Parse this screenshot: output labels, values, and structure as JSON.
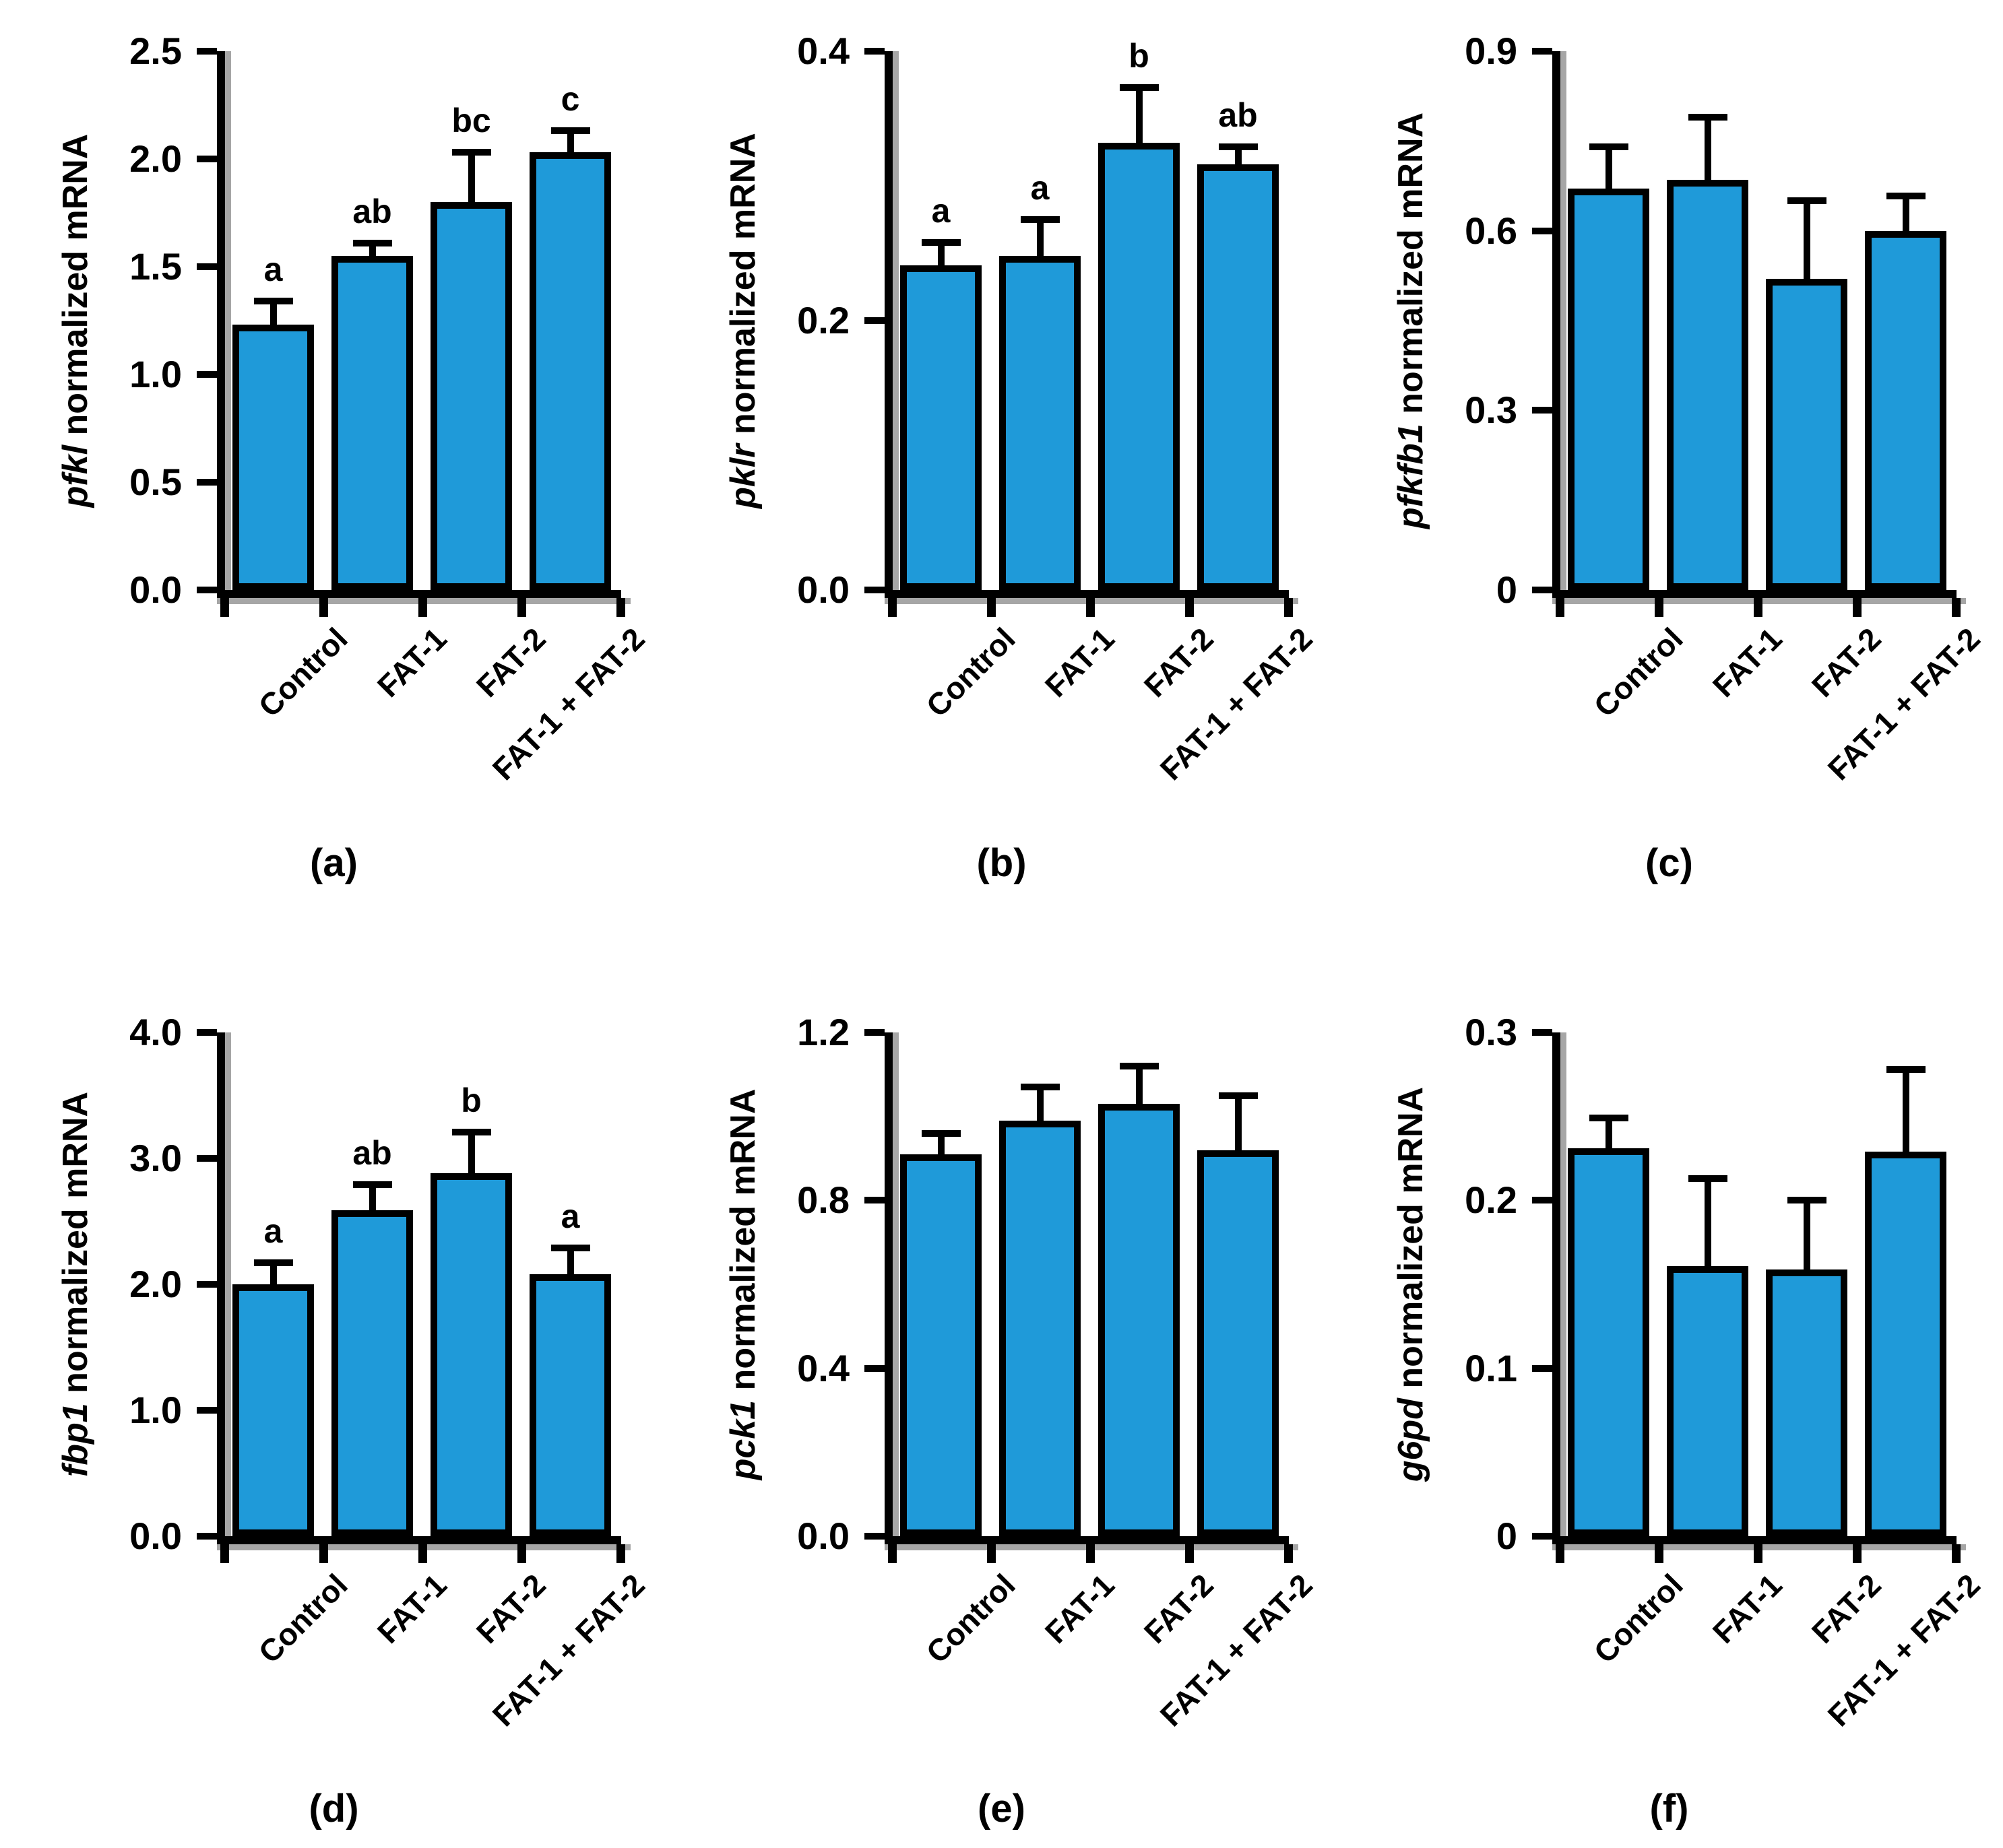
{
  "figure": {
    "background": "#ffffff",
    "panel_rows": 2,
    "panel_cols": 3
  },
  "colors": {
    "bar_fill": "#1f9ad9",
    "bar_border": "#000000",
    "axis": "#000000",
    "axis_shadow": "#a6a6a6",
    "text": "#000000"
  },
  "chart_data": [
    {
      "id": "a",
      "type": "bar",
      "panel_label": "(a)",
      "ylabel_gene": "pfkl",
      "ylabel_suffix": " normalized mRNA",
      "categories": [
        "Control",
        "FAT-1",
        "FAT-2",
        "FAT-1 + FAT-2"
      ],
      "values": [
        1.23,
        1.55,
        1.8,
        2.03
      ],
      "errors_plus": [
        0.11,
        0.06,
        0.23,
        0.1
      ],
      "sig_letters": [
        "a",
        "ab",
        "bc",
        "c"
      ],
      "ylim": [
        0,
        2.5
      ],
      "yticks": [
        "0.0",
        "0.5",
        "1.0",
        "1.5",
        "2.0",
        "2.5"
      ],
      "legend": "none",
      "grid": "off"
    },
    {
      "id": "b",
      "type": "bar",
      "panel_label": "(b)",
      "ylabel_gene": "pklr",
      "ylabel_suffix": " normalized mRNA",
      "categories": [
        "Control",
        "FAT-1",
        "FAT-2",
        "FAT-1 + FAT-2"
      ],
      "values": [
        0.241,
        0.248,
        0.332,
        0.316
      ],
      "errors_plus": [
        0.017,
        0.027,
        0.041,
        0.013
      ],
      "sig_letters": [
        "a",
        "a",
        "b",
        "ab"
      ],
      "ylim": [
        0,
        0.4
      ],
      "yticks": [
        "0.0",
        "0.2",
        "0.4"
      ],
      "legend": "none",
      "grid": "off"
    },
    {
      "id": "c",
      "type": "bar",
      "panel_label": "(c)",
      "ylabel_gene": "pfkfb1",
      "ylabel_suffix": " normalized mRNA",
      "categories": [
        "Control",
        "FAT-1",
        "FAT-2",
        "FAT-1 + FAT-2"
      ],
      "values": [
        0.67,
        0.685,
        0.52,
        0.6
      ],
      "errors_plus": [
        0.07,
        0.105,
        0.13,
        0.058
      ],
      "sig_letters": [
        "",
        "",
        "",
        ""
      ],
      "ylim": [
        0,
        0.9
      ],
      "yticks": [
        "0",
        "0.3",
        "0.6",
        "0.9"
      ],
      "legend": "none",
      "grid": "off"
    },
    {
      "id": "d",
      "type": "bar",
      "panel_label": "(d)",
      "ylabel_gene": "fbp1",
      "ylabel_suffix": " normalized mRNA",
      "categories": [
        "Control",
        "FAT-1",
        "FAT-2",
        "FAT-1 + FAT-2"
      ],
      "values": [
        2.0,
        2.59,
        2.88,
        2.08
      ],
      "errors_plus": [
        0.17,
        0.2,
        0.33,
        0.21
      ],
      "sig_letters": [
        "a",
        "ab",
        "b",
        "a"
      ],
      "ylim": [
        0,
        4.0
      ],
      "yticks": [
        "0.0",
        "1.0",
        "2.0",
        "3.0",
        "4.0"
      ],
      "legend": "none",
      "grid": "off"
    },
    {
      "id": "e",
      "type": "bar",
      "panel_label": "(e)",
      "ylabel_gene": "pck1",
      "ylabel_suffix": " normalized mRNA",
      "categories": [
        "Control",
        "FAT-1",
        "FAT-2",
        "FAT-1 + FAT-2"
      ],
      "values": [
        0.91,
        0.99,
        1.03,
        0.92
      ],
      "errors_plus": [
        0.05,
        0.08,
        0.09,
        0.13
      ],
      "sig_letters": [
        "",
        "",
        "",
        ""
      ],
      "ylim": [
        0,
        1.2
      ],
      "yticks": [
        "0.0",
        "0.4",
        "0.8",
        "1.2"
      ],
      "legend": "none",
      "grid": "off"
    },
    {
      "id": "f",
      "type": "bar",
      "panel_label": "(f)",
      "ylabel_gene": "g6pd",
      "ylabel_suffix": " normalized mRNA",
      "categories": [
        "Control",
        "FAT-1",
        "FAT-2",
        "FAT-1 + FAT-2"
      ],
      "values": [
        0.231,
        0.161,
        0.159,
        0.229
      ],
      "errors_plus": [
        0.018,
        0.052,
        0.041,
        0.049
      ],
      "sig_letters": [
        "",
        "",
        "",
        ""
      ],
      "ylim": [
        0,
        0.3
      ],
      "yticks": [
        "0",
        "0.1",
        "0.2",
        "0.3"
      ],
      "legend": "none",
      "grid": "off"
    }
  ]
}
